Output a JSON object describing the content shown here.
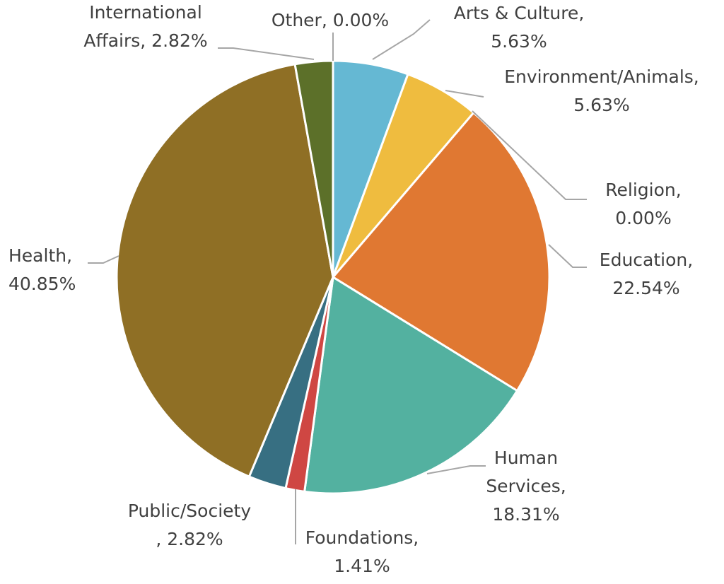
{
  "chart_data": {
    "type": "pie",
    "title": "",
    "legend": "none",
    "slices": [
      {
        "name": "Arts & Culture",
        "value": 5.63,
        "label_lines": [
          "Arts & Culture,",
          "5.63%"
        ],
        "color": "#65b8d3"
      },
      {
        "name": "Environment/Animals",
        "value": 5.63,
        "label_lines": [
          "Environment/Animals,",
          "5.63%"
        ],
        "color": "#efbc3f"
      },
      {
        "name": "Religion",
        "value": 0.0,
        "label_lines": [
          "Religion,",
          "0.00%"
        ],
        "color": "#a5a5a5"
      },
      {
        "name": "Education",
        "value": 22.54,
        "label_lines": [
          "Education,",
          "22.54%"
        ],
        "color": "#e07832"
      },
      {
        "name": "Human Services",
        "value": 18.31,
        "label_lines": [
          "Human",
          "Services,",
          "18.31%"
        ],
        "color": "#53b1a0"
      },
      {
        "name": "Foundations",
        "value": 1.41,
        "label_lines": [
          "Foundations,",
          "1.41%"
        ],
        "color": "#cf4743"
      },
      {
        "name": "Public/Society",
        "value": 2.82,
        "label_lines": [
          "Public/Society",
          ", 2.82%"
        ],
        "color": "#376f82"
      },
      {
        "name": "Health",
        "value": 40.85,
        "label_lines": [
          "Health,",
          "40.85%"
        ],
        "color": "#8f6f25"
      },
      {
        "name": "International Affairs",
        "value": 2.82,
        "label_lines": [
          "International",
          "Affairs, 2.82%"
        ],
        "color": "#5c7029"
      },
      {
        "name": "Other",
        "value": 0.0,
        "label_lines": [
          "Other, 0.00%"
        ],
        "color": "#999999"
      }
    ]
  }
}
